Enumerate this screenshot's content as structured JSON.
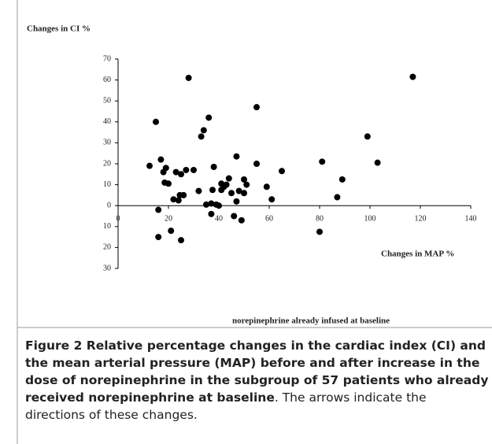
{
  "chart_data": {
    "type": "scatter",
    "y_label": "Changes in CI %",
    "x_label": "Changes in MAP %",
    "subtitle": "norepinephrine already infused at baseline",
    "color": "#000000",
    "xlim": [
      0,
      140
    ],
    "xticks": [
      0,
      20,
      40,
      60,
      80,
      100,
      120,
      140
    ],
    "ylim": [
      -30,
      70
    ],
    "yticks": [
      {
        "value": -30,
        "label": "30"
      },
      {
        "value": -20,
        "label": "20"
      },
      {
        "value": -10,
        "label": "10"
      },
      0,
      10,
      20,
      30,
      40,
      50,
      60,
      70
    ],
    "x": [
      12.5,
      15,
      16,
      16,
      17,
      18,
      18.5,
      19,
      20,
      21,
      22,
      23,
      24,
      24.5,
      25,
      25,
      26,
      27,
      28,
      30,
      32,
      33,
      34,
      35,
      36,
      37,
      37,
      37.5,
      38,
      39,
      40,
      41,
      41,
      42,
      43,
      44,
      45,
      46,
      47,
      47,
      48,
      49,
      50,
      50,
      51,
      55,
      55,
      59,
      61,
      65,
      80,
      81,
      87,
      89,
      99,
      103,
      117
    ],
    "y": [
      19,
      40,
      -2,
      -15,
      22,
      16,
      11,
      18,
      10.5,
      -12,
      3,
      16,
      2.5,
      5,
      -16.5,
      15,
      5,
      17,
      61,
      17,
      7,
      33,
      36,
      0.5,
      42,
      -4,
      1,
      7.5,
      18.5,
      0.5,
      0,
      10.5,
      7.5,
      9,
      10,
      13,
      6,
      -5,
      2,
      23.5,
      7,
      -7,
      12.5,
      6,
      10,
      47,
      20,
      9,
      3,
      16.5,
      -12.5,
      21,
      4,
      12.5,
      33,
      20.5,
      61.5
    ]
  },
  "caption": {
    "bold": "Figure 2 Relative percentage changes in the cardiac index (CI) and the mean arterial pressure (MAP) before and after increase in the dose of norepinephrine in the subgroup of 57 patients who already received norepinephrine at baseline",
    "text": ". The arrows indicate the directions of these changes."
  }
}
